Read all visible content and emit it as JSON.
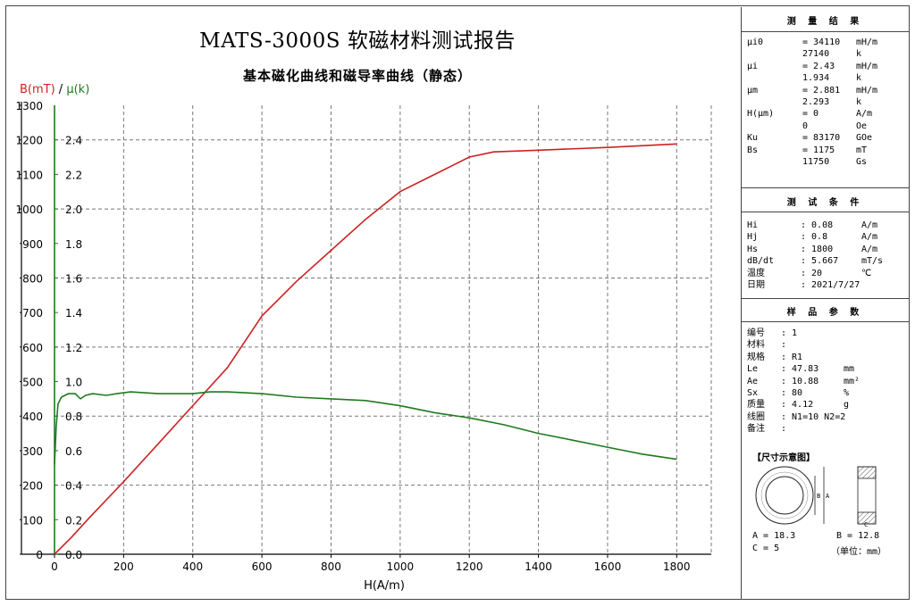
{
  "header": {
    "title": "MATS-3000S 软磁材料测试报告",
    "subtitle": "基本磁化曲线和磁导率曲线（静态）"
  },
  "chart_data": {
    "type": "line",
    "title": "基本磁化曲线和磁导率曲线（静态）",
    "xlabel": "H(A/m)",
    "ylabel_left": "B(mT)",
    "ylabel_sep": " / ",
    "ylabel_right": "μ(k)",
    "xlim": [
      0,
      1900
    ],
    "ylim_left": [
      0,
      1300
    ],
    "ylim_right": [
      0,
      2.6
    ],
    "x_ticks": [
      0,
      200,
      400,
      600,
      800,
      1000,
      1200,
      1400,
      1600,
      1800
    ],
    "y_ticks_left": [
      0,
      100,
      200,
      300,
      400,
      500,
      600,
      700,
      800,
      900,
      1000,
      1100,
      1200,
      1300
    ],
    "y_ticks_right": [
      "0.0",
      "0.2",
      "0.4",
      "0.6",
      "0.8",
      "1.0",
      "1.2",
      "1.4",
      "1.6",
      "1.8",
      "2.0",
      "2.2",
      "2.4"
    ],
    "grid": true,
    "series": [
      {
        "name": "B(mT)",
        "axis": "left",
        "color": "#cc2222",
        "points": [
          [
            0,
            0
          ],
          [
            50,
            50
          ],
          [
            100,
            105
          ],
          [
            200,
            210
          ],
          [
            300,
            320
          ],
          [
            400,
            430
          ],
          [
            500,
            540
          ],
          [
            600,
            690
          ],
          [
            700,
            790
          ],
          [
            800,
            880
          ],
          [
            900,
            970
          ],
          [
            950,
            1010
          ],
          [
            1000,
            1050
          ],
          [
            1100,
            1100
          ],
          [
            1200,
            1150
          ],
          [
            1270,
            1165
          ],
          [
            1400,
            1170
          ],
          [
            1600,
            1178
          ],
          [
            1800,
            1188
          ]
        ]
      },
      {
        "name": "μ(k)",
        "axis": "right",
        "color": "#1f7a1f",
        "points": [
          [
            0,
            0.52
          ],
          [
            5,
            0.74
          ],
          [
            10,
            0.87
          ],
          [
            20,
            0.91
          ],
          [
            40,
            0.93
          ],
          [
            60,
            0.93
          ],
          [
            75,
            0.9
          ],
          [
            90,
            0.92
          ],
          [
            110,
            0.93
          ],
          [
            150,
            0.92
          ],
          [
            180,
            0.93
          ],
          [
            220,
            0.94
          ],
          [
            300,
            0.93
          ],
          [
            400,
            0.93
          ],
          [
            450,
            0.94
          ],
          [
            500,
            0.94
          ],
          [
            600,
            0.93
          ],
          [
            700,
            0.91
          ],
          [
            800,
            0.9
          ],
          [
            900,
            0.89
          ],
          [
            1000,
            0.86
          ],
          [
            1100,
            0.82
          ],
          [
            1200,
            0.79
          ],
          [
            1300,
            0.75
          ],
          [
            1400,
            0.7
          ],
          [
            1500,
            0.66
          ],
          [
            1600,
            0.62
          ],
          [
            1700,
            0.58
          ],
          [
            1800,
            0.55
          ]
        ]
      }
    ]
  },
  "results": {
    "heading": "测 量 结 果",
    "rows": [
      [
        "μi0",
        "= 34110",
        "mH/m"
      ],
      [
        "",
        "27140",
        "k"
      ],
      [
        "μi",
        "= 2.43",
        "mH/m"
      ],
      [
        "",
        "1.934",
        "k"
      ],
      [
        "μm",
        "= 2.881",
        "mH/m"
      ],
      [
        "",
        "2.293",
        "k"
      ],
      [
        "H(μm)",
        "= 0",
        "A/m"
      ],
      [
        "",
        "0",
        "Oe"
      ],
      [
        "Ku",
        "= 83170",
        "GOe"
      ],
      [
        "Bs",
        "= 1175",
        "mT"
      ],
      [
        "",
        "11750",
        "Gs"
      ]
    ]
  },
  "conditions": {
    "heading": "测 试 条 件",
    "rows": [
      [
        "Hi",
        ": 0.08",
        "A/m"
      ],
      [
        "Hj",
        ": 0.8",
        "A/m"
      ],
      [
        "Hs",
        ": 1800",
        "A/m"
      ],
      [
        "dB/dt",
        ": 5.667",
        "mT/s"
      ],
      [
        "温度",
        ": 20",
        "℃"
      ],
      [
        "日期",
        ": 2021/7/27",
        ""
      ]
    ]
  },
  "sample": {
    "heading": "样 品 参 数",
    "rows": [
      [
        "编号",
        ": 1",
        ""
      ],
      [
        "材料",
        ":",
        ""
      ],
      [
        "规格",
        ": R1",
        ""
      ],
      [
        "Le",
        ": 47.83",
        "mm"
      ],
      [
        "Ae",
        ": 10.88",
        "mm²"
      ],
      [
        "Sx",
        ": 80",
        "%"
      ],
      [
        "质量",
        ": 4.12",
        "g"
      ],
      [
        "线圈",
        ": N1=10 N2=2",
        ""
      ],
      [
        "备注",
        ":",
        ""
      ]
    ]
  },
  "dimensions": {
    "heading": "【尺寸示意图】",
    "label_A": "A",
    "label_B": "B",
    "label_C": "C",
    "a": "A = 18.3",
    "b": "B = 12.8",
    "c": "C = 5",
    "unit": "（单位：mm）"
  }
}
